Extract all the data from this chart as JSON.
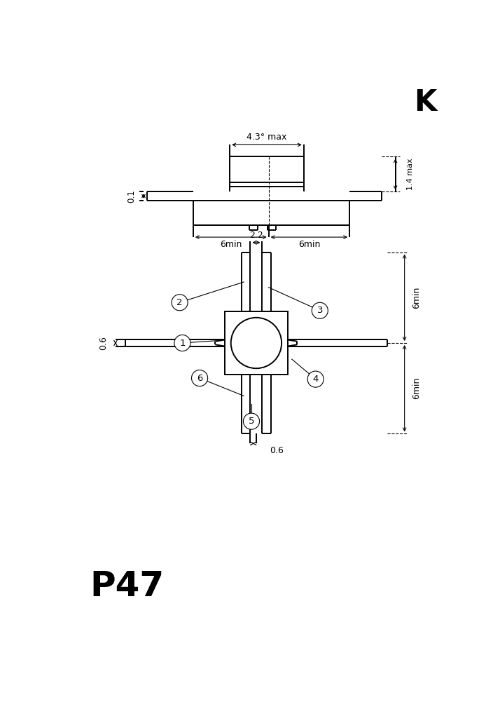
{
  "bg_color": "#ffffff",
  "line_color": "#000000",
  "title_K": "K",
  "label_P47": "P47",
  "top_view": {
    "dim_4p3_max": "4.3° max",
    "dim_6min_left": "6min",
    "dim_6min_right": "6min",
    "dim_1p4_max": "1.4 max",
    "dim_0p1": "0.1"
  },
  "bottom_view": {
    "dim_2p2": "2.2",
    "dim_0p6_left": "0.6",
    "dim_0p6_bottom": "0.6",
    "dim_6min_top": "6min",
    "dim_6min_bot": "6min",
    "pin_labels": [
      "1",
      "2",
      "3",
      "4",
      "5",
      "6"
    ]
  }
}
